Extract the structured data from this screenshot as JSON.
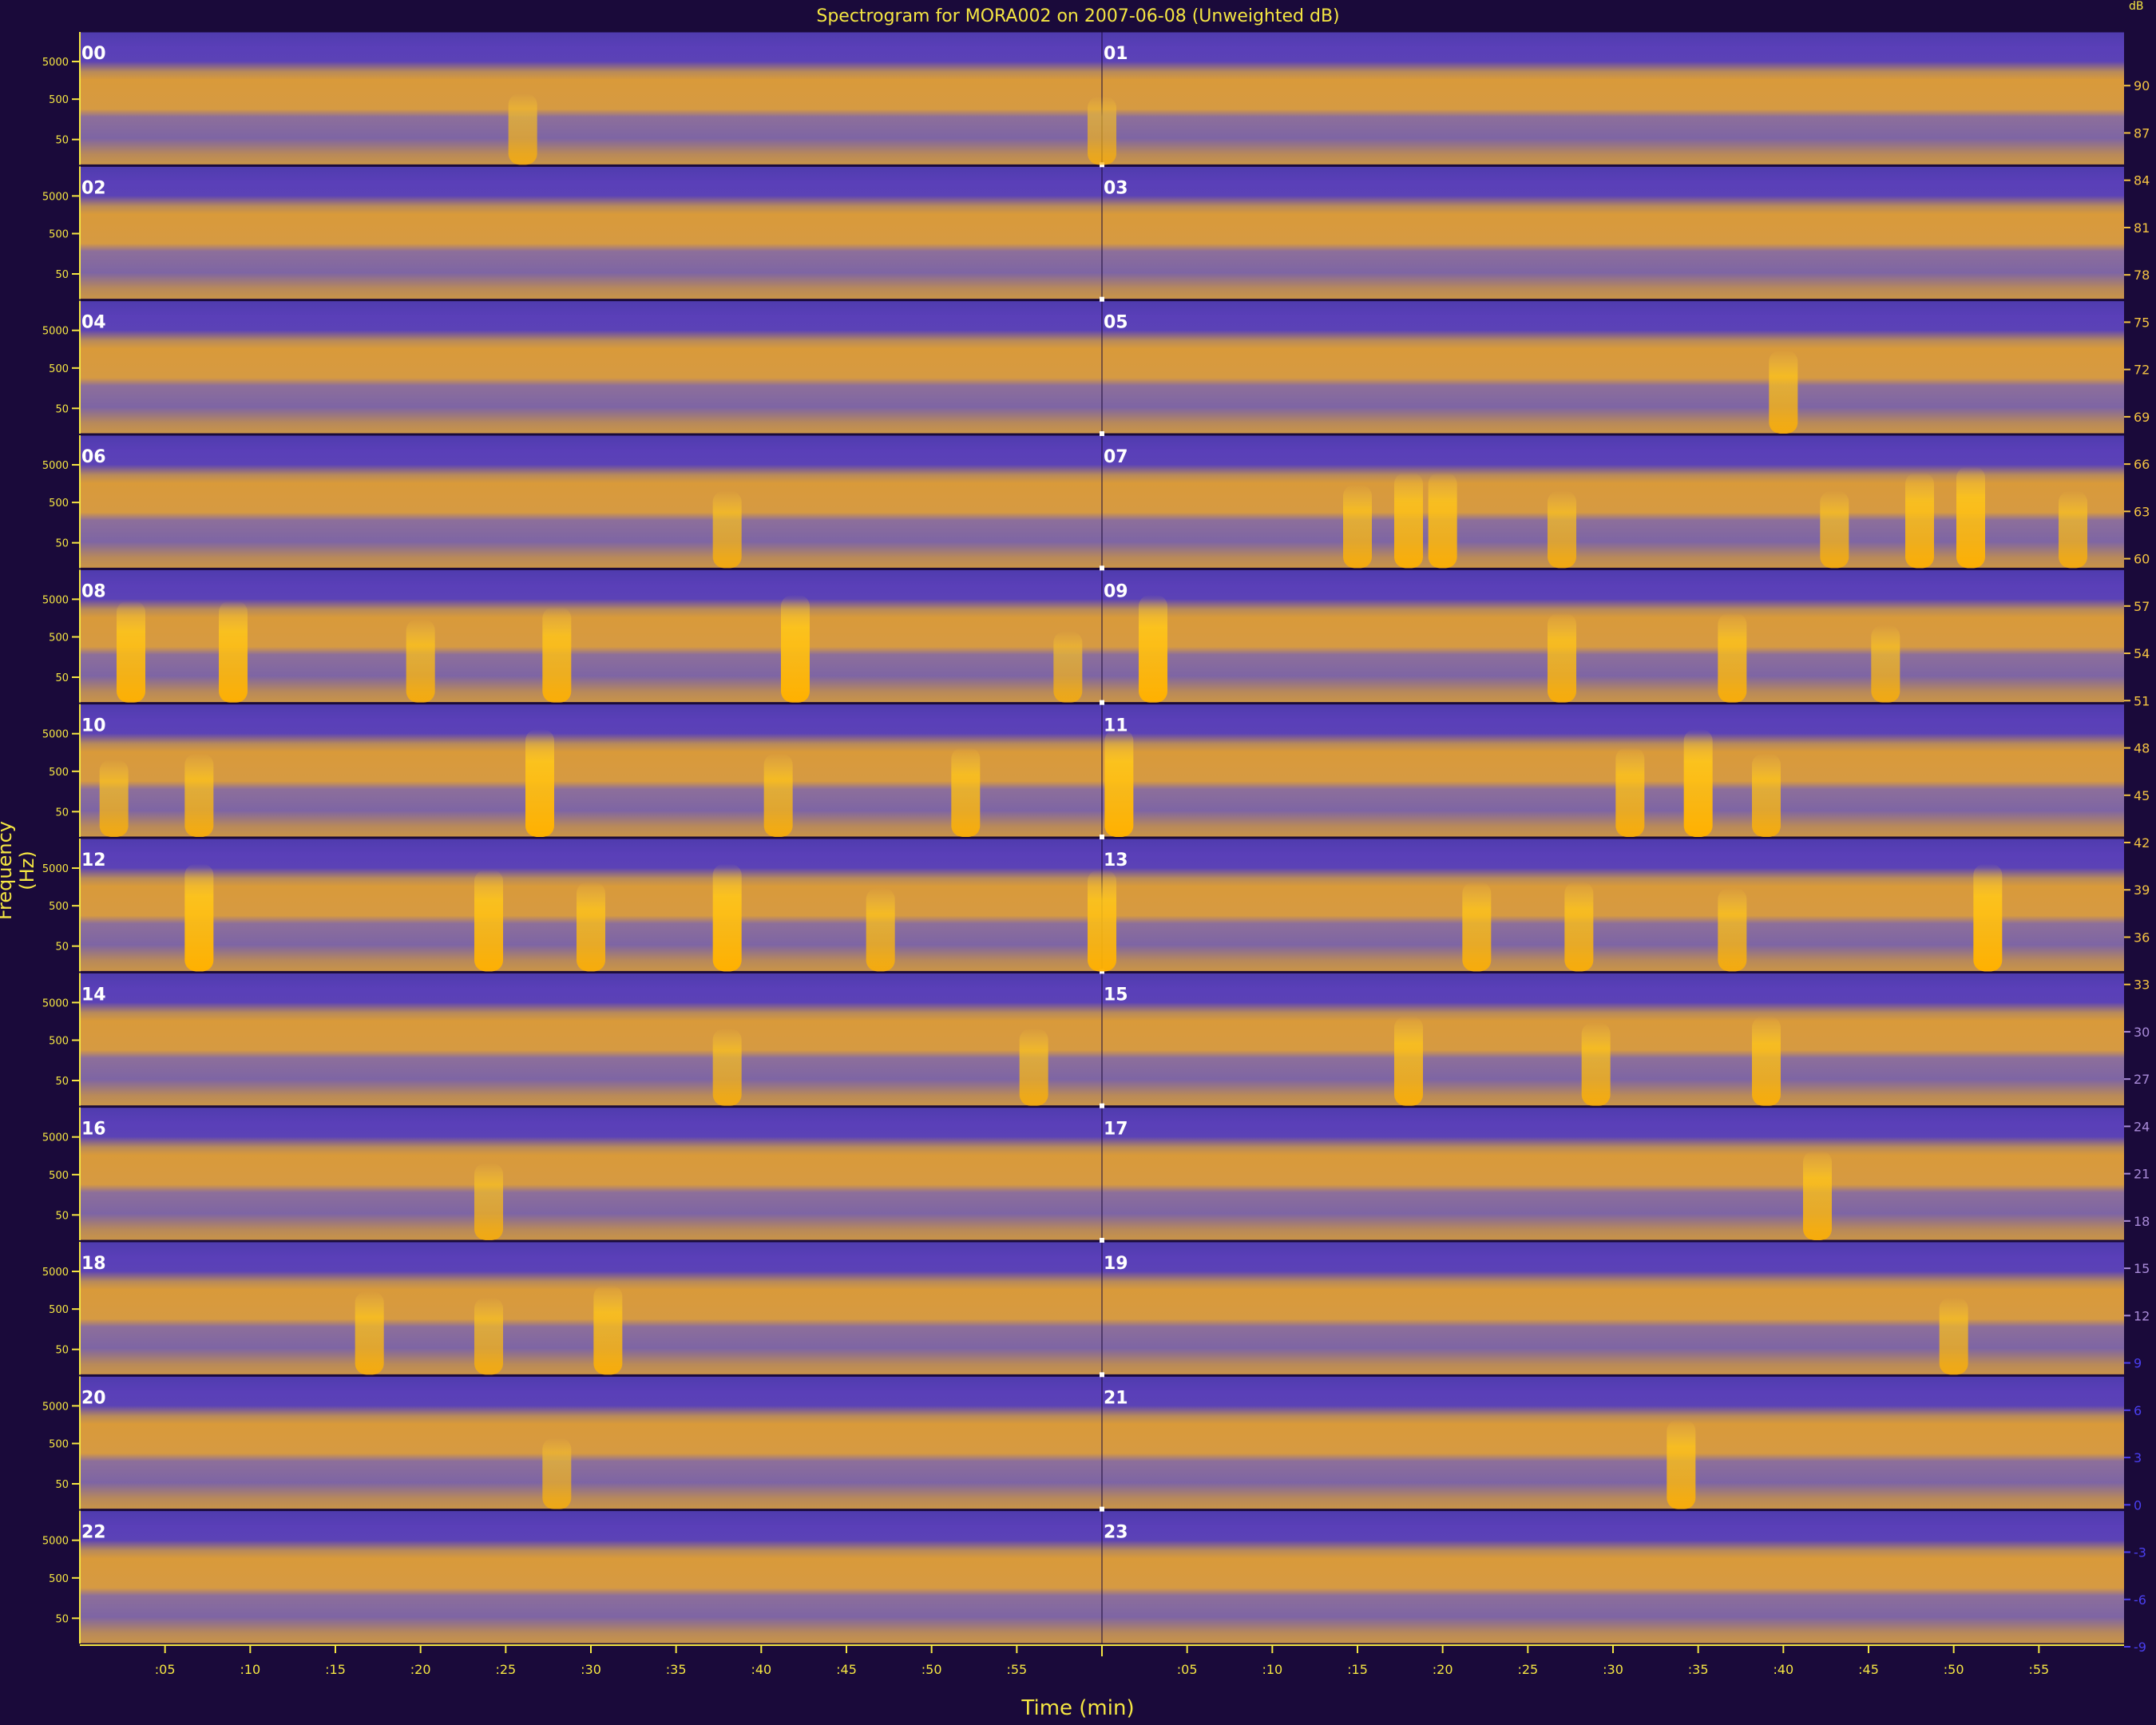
{
  "window": {
    "title": "Spectrogram for MORA002 on 2007-06-08 (Unweighted dB)"
  },
  "chart_data": {
    "type": "heatmap",
    "title": "Spectrogram for MORA002 on 2007-06-08 (Unweighted dB)",
    "xlabel": "Time (min)",
    "ylabel": "Frequency (Hz)",
    "colorbar_unit": "dB",
    "hours": [
      "00",
      "01",
      "02",
      "03",
      "04",
      "05",
      "06",
      "07",
      "08",
      "09",
      "10",
      "11",
      "12",
      "13",
      "14",
      "15",
      "16",
      "17",
      "18",
      "19",
      "20",
      "21",
      "22",
      "23"
    ],
    "x_ticks": [
      ":05",
      ":10",
      ":15",
      ":20",
      ":25",
      ":30",
      ":35",
      ":40",
      ":45",
      ":50",
      ":55"
    ],
    "y_ticks": [
      "5000",
      "500",
      "50"
    ],
    "colorbar_ticks": [
      90,
      87,
      84,
      81,
      78,
      75,
      72,
      69,
      66,
      63,
      60,
      57,
      54,
      51,
      48,
      45,
      42,
      39,
      36,
      33,
      30,
      27,
      24,
      21,
      18,
      15,
      12,
      9,
      6,
      3,
      0,
      -3,
      -6,
      -9
    ],
    "colorbar_range": [
      -9,
      93
    ],
    "colors": {
      "background": "#1a0a3a",
      "low": "#5a3fb8",
      "mid": "#8b6aa0",
      "high": "#d99a3a",
      "peak": "#ffc61a",
      "text": "#f5e642",
      "label": "#ffffff"
    },
    "events": [
      {
        "hour": "00",
        "minute": 26,
        "intensity": 0.4
      },
      {
        "hour": "01",
        "minute": 0,
        "intensity": 0.35
      },
      {
        "hour": "05",
        "minute": 40,
        "intensity": 0.6
      },
      {
        "hour": "06",
        "minute": 38,
        "intensity": 0.5
      },
      {
        "hour": "07",
        "minute": 15,
        "intensity": 0.6
      },
      {
        "hour": "07",
        "minute": 18,
        "intensity": 0.8
      },
      {
        "hour": "07",
        "minute": 20,
        "intensity": 0.8
      },
      {
        "hour": "07",
        "minute": 27,
        "intensity": 0.5
      },
      {
        "hour": "07",
        "minute": 43,
        "intensity": 0.5
      },
      {
        "hour": "07",
        "minute": 48,
        "intensity": 0.8
      },
      {
        "hour": "07",
        "minute": 51,
        "intensity": 0.9
      },
      {
        "hour": "07",
        "minute": 57,
        "intensity": 0.5
      },
      {
        "hour": "08",
        "minute": 3,
        "intensity": 0.9
      },
      {
        "hour": "08",
        "minute": 9,
        "intensity": 0.9
      },
      {
        "hour": "08",
        "minute": 20,
        "intensity": 0.6
      },
      {
        "hour": "08",
        "minute": 28,
        "intensity": 0.8
      },
      {
        "hour": "08",
        "minute": 42,
        "intensity": 1.0
      },
      {
        "hour": "08",
        "minute": 58,
        "intensity": 0.4
      },
      {
        "hour": "09",
        "minute": 3,
        "intensity": 1.0
      },
      {
        "hour": "09",
        "minute": 27,
        "intensity": 0.7
      },
      {
        "hour": "09",
        "minute": 37,
        "intensity": 0.7
      },
      {
        "hour": "09",
        "minute": 46,
        "intensity": 0.5
      },
      {
        "hour": "10",
        "minute": 2,
        "intensity": 0.5
      },
      {
        "hour": "10",
        "minute": 7,
        "intensity": 0.6
      },
      {
        "hour": "10",
        "minute": 27,
        "intensity": 1.0
      },
      {
        "hour": "10",
        "minute": 41,
        "intensity": 0.6
      },
      {
        "hour": "10",
        "minute": 52,
        "intensity": 0.7
      },
      {
        "hour": "11",
        "minute": 1,
        "intensity": 1.0
      },
      {
        "hour": "11",
        "minute": 31,
        "intensity": 0.7
      },
      {
        "hour": "11",
        "minute": 35,
        "intensity": 1.0
      },
      {
        "hour": "11",
        "minute": 39,
        "intensity": 0.6
      },
      {
        "hour": "12",
        "minute": 7,
        "intensity": 1.0
      },
      {
        "hour": "12",
        "minute": 24,
        "intensity": 0.9
      },
      {
        "hour": "12",
        "minute": 30,
        "intensity": 0.7
      },
      {
        "hour": "12",
        "minute": 38,
        "intensity": 1.0
      },
      {
        "hour": "12",
        "minute": 47,
        "intensity": 0.6
      },
      {
        "hour": "13",
        "minute": 0,
        "intensity": 0.9
      },
      {
        "hour": "13",
        "minute": 22,
        "intensity": 0.7
      },
      {
        "hour": "13",
        "minute": 28,
        "intensity": 0.7
      },
      {
        "hour": "13",
        "minute": 37,
        "intensity": 0.6
      },
      {
        "hour": "13",
        "minute": 52,
        "intensity": 1.0
      },
      {
        "hour": "14",
        "minute": 38,
        "intensity": 0.5
      },
      {
        "hour": "14",
        "minute": 56,
        "intensity": 0.5
      },
      {
        "hour": "15",
        "minute": 18,
        "intensity": 0.7
      },
      {
        "hour": "15",
        "minute": 29,
        "intensity": 0.6
      },
      {
        "hour": "15",
        "minute": 39,
        "intensity": 0.7
      },
      {
        "hour": "16",
        "minute": 24,
        "intensity": 0.5
      },
      {
        "hour": "17",
        "minute": 42,
        "intensity": 0.7
      },
      {
        "hour": "18",
        "minute": 17,
        "intensity": 0.6
      },
      {
        "hour": "18",
        "minute": 24,
        "intensity": 0.5
      },
      {
        "hour": "18",
        "minute": 31,
        "intensity": 0.7
      },
      {
        "hour": "19",
        "minute": 50,
        "intensity": 0.5
      },
      {
        "hour": "20",
        "minute": 28,
        "intensity": 0.4
      },
      {
        "hour": "21",
        "minute": 34,
        "intensity": 0.7
      }
    ]
  }
}
